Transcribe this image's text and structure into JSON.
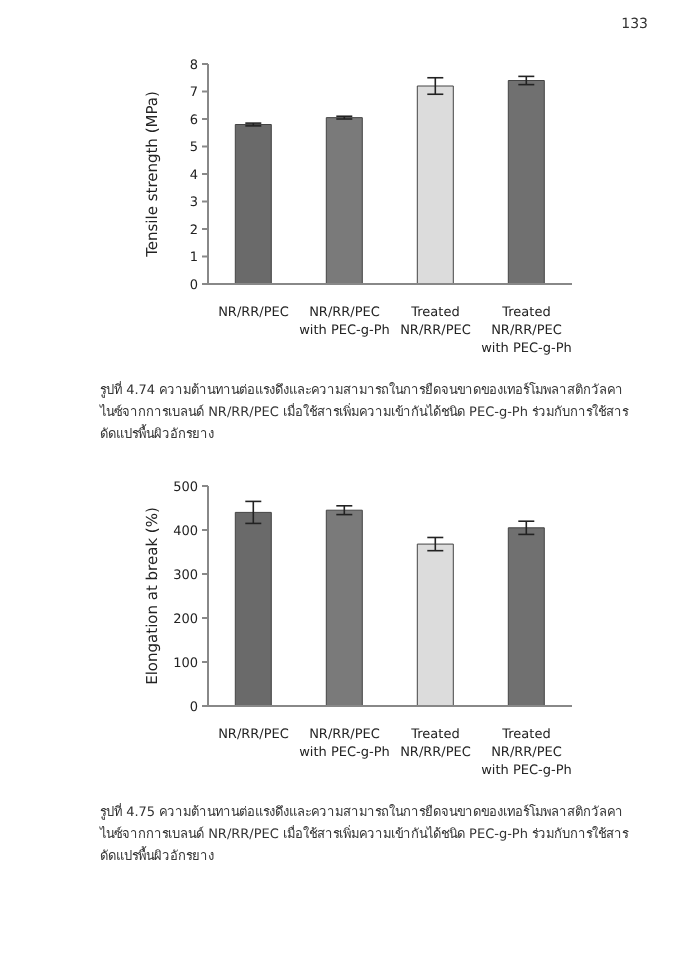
{
  "chart_data": [
    {
      "type": "bar",
      "ylabel": "Tensile strength (MPa)",
      "categories": [
        "NR/RR/PEC",
        "NR/RR/PEC with PEC-g-Ph",
        "Treated NR/RR/PEC",
        "Treated NR/RR/PEC with PEC-g-Ph"
      ],
      "values": [
        5.8,
        6.05,
        7.2,
        7.4
      ],
      "errors": [
        0.05,
        0.05,
        0.3,
        0.15
      ],
      "colors": [
        "#6a6a6a",
        "#7a7a7a",
        "#dcdcdc",
        "#707070"
      ],
      "ylim": [
        0,
        8
      ],
      "yticks": [
        0,
        1,
        2,
        3,
        4,
        5,
        6,
        7,
        8
      ],
      "grid": false,
      "annotations": [
        "133",
        "รูปที่ 4.74 ความต้านทานต่อแรงดึงและความสามารถในการยืดจนขาดของเทอร์โมพลาสติกวัลคาไนซ์จากการเบลนด์ NR/RR/PEC เมื่อใช้สารเพิ่มความเข้ากันได้ชนิด PEC-g-Ph ร่วมกับการใช้สารดัดแปรพื้นผิวอักรยาง"
      ]
    },
    {
      "type": "bar",
      "ylabel": "Elongation at break (%)",
      "categories": [
        "NR/RR/PEC",
        "NR/RR/PEC with PEC-g-Ph",
        "Treated NR/RR/PEC",
        "Treated NR/RR/PEC with PEC-g-Ph"
      ],
      "values": [
        440,
        445,
        368,
        405
      ],
      "errors": [
        25,
        10,
        15,
        15
      ],
      "colors": [
        "#6a6a6a",
        "#7a7a7a",
        "#dcdcdc",
        "#707070"
      ],
      "ylim": [
        0,
        500
      ],
      "yticks": [
        0,
        100,
        200,
        300,
        400,
        500
      ],
      "grid": false,
      "annotations": [
        "รูปที่ 4.75 ความต้านทานต่อแรงดึงและความสามารถในการยืดจนขาดของเทอร์โมพลาสติกวัลคาไนซ์จากการเบลนด์ NR/RR/PEC เมื่อใช้สารเพิ่มความเข้ากันได้ชนิด PEC-g-Ph ร่วมกับการใช้สารดัดแปรพื้นผิวอักรยาง"
      ]
    }
  ]
}
